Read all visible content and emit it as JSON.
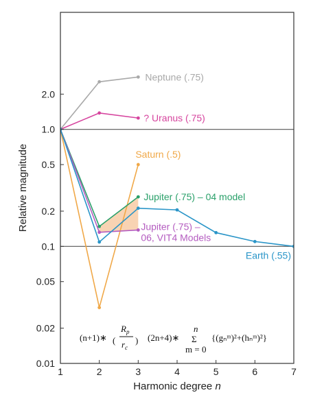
{
  "chart_data": {
    "type": "line",
    "xlabel_text": "Harmonic degree",
    "xlabel_var": "n",
    "ylabel": "Relative magnitude",
    "x_ticks": [
      1,
      2,
      3,
      4,
      5,
      6,
      7
    ],
    "y_scale": "log",
    "xlim": [
      1,
      7
    ],
    "ylim": [
      0.01,
      10
    ],
    "y_ticks": [
      {
        "value": 0.01,
        "label": "0.01"
      },
      {
        "value": 0.02,
        "label": "0.02"
      },
      {
        "value": 0.05,
        "label": "0.05"
      },
      {
        "value": 0.1,
        "label": "0.1"
      },
      {
        "value": 0.2,
        "label": "0.2"
      },
      {
        "value": 0.5,
        "label": "0.5"
      },
      {
        "value": 1.0,
        "label": "1.0"
      },
      {
        "value": 2.0,
        "label": "2.0"
      }
    ],
    "reference_lines": [
      0.1,
      1.0
    ],
    "series": [
      {
        "name": "Neptune (.75)",
        "label_lines": [
          "Neptune (.75)"
        ],
        "color": "#a9a9a9",
        "x": [
          1,
          2,
          3
        ],
        "y": [
          1.0,
          2.55,
          2.8
        ]
      },
      {
        "name": "? Uranus (.75)",
        "label_lines": [
          "? Uranus (.75)"
        ],
        "color": "#d6449e",
        "x": [
          1,
          2,
          3
        ],
        "y": [
          1.0,
          1.38,
          1.25
        ]
      },
      {
        "name": "Saturn (.5)",
        "label_lines": [
          "Saturn (.5)"
        ],
        "color": "#f0a848",
        "x": [
          1,
          2,
          3
        ],
        "y": [
          1.0,
          0.03,
          0.5
        ]
      },
      {
        "name": "Jupiter (.75) – 04 model",
        "label_lines": [
          "Jupiter (.75) – 04 model"
        ],
        "color": "#2aa06a",
        "x": [
          1,
          2,
          3
        ],
        "y": [
          1.0,
          0.148,
          0.265
        ]
      },
      {
        "name": "Jupiter (.75) – 06, VIT4 Models",
        "label_lines": [
          "Jupiter (.75) –",
          "06, VIT4 Models"
        ],
        "color": "#b45cc0",
        "x": [
          1,
          2,
          3
        ],
        "y": [
          1.0,
          0.132,
          0.138
        ]
      },
      {
        "name": "Earth (.55)",
        "label_lines": [
          "Earth (.55)"
        ],
        "color": "#2a95c8",
        "x": [
          1,
          2,
          3,
          4,
          5,
          6,
          7
        ],
        "y": [
          1.0,
          0.109,
          0.212,
          0.205,
          0.131,
          0.11,
          0.1
        ]
      }
    ],
    "shaded_band": {
      "x": [
        2,
        3
      ],
      "lower": [
        0.132,
        0.138
      ],
      "upper": [
        0.148,
        0.265
      ],
      "color": "#f5c49a"
    },
    "formula": {
      "left": "(n+1)∗",
      "frac_num": "R",
      "frac_num_sub": "p",
      "frac_den": "r",
      "frac_den_sub": "c",
      "mid": "(2n+4)∗",
      "sum_top": "n",
      "sum_symbol": "Σ",
      "sum_bottom": "m = 0",
      "body": "{(gₙᵐ)²+(hₙᵐ)²}"
    }
  }
}
